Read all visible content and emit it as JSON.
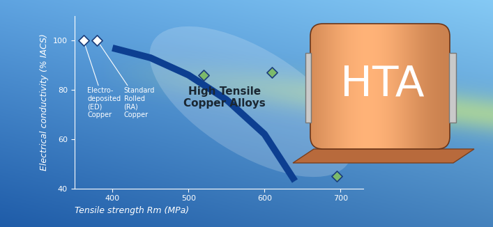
{
  "chart_data": {
    "type": "scatter",
    "xlabel": "Tensile strength Rm (MPa)",
    "ylabel": "Electrical conductivity (% IACS)",
    "xlim": [
      350,
      730
    ],
    "xticks": [
      400,
      500,
      600,
      700
    ],
    "ylim": [
      40,
      110
    ],
    "yticks": [
      40,
      60,
      80,
      100
    ],
    "grid": false,
    "series": [
      {
        "type": "line",
        "color": "#0d3f91",
        "line_style": "solid",
        "x": [
          400,
          450,
          500,
          550,
          600,
          640
        ],
        "values": [
          97,
          93,
          86,
          76,
          62,
          43
        ]
      },
      {
        "type": "scatter",
        "color": "#ffffff",
        "marker": "diamond",
        "x": [
          362,
          380
        ],
        "values": [
          100,
          100
        ]
      },
      {
        "type": "scatter",
        "color": "#7cba6b",
        "marker": "diamond",
        "x": [
          520,
          610,
          695
        ],
        "values": [
          86,
          87,
          45
        ]
      }
    ],
    "point_labels": [
      {
        "text": "Electro-\ndeposited\n(ED)\nCopper",
        "x": 362,
        "y": 100
      },
      {
        "text": "Standard\nRolled\n(RA)\nCopper",
        "x": 380,
        "y": 100
      }
    ],
    "callout": "High Tensile\nCopper Alloys",
    "image_label": "HTA"
  }
}
